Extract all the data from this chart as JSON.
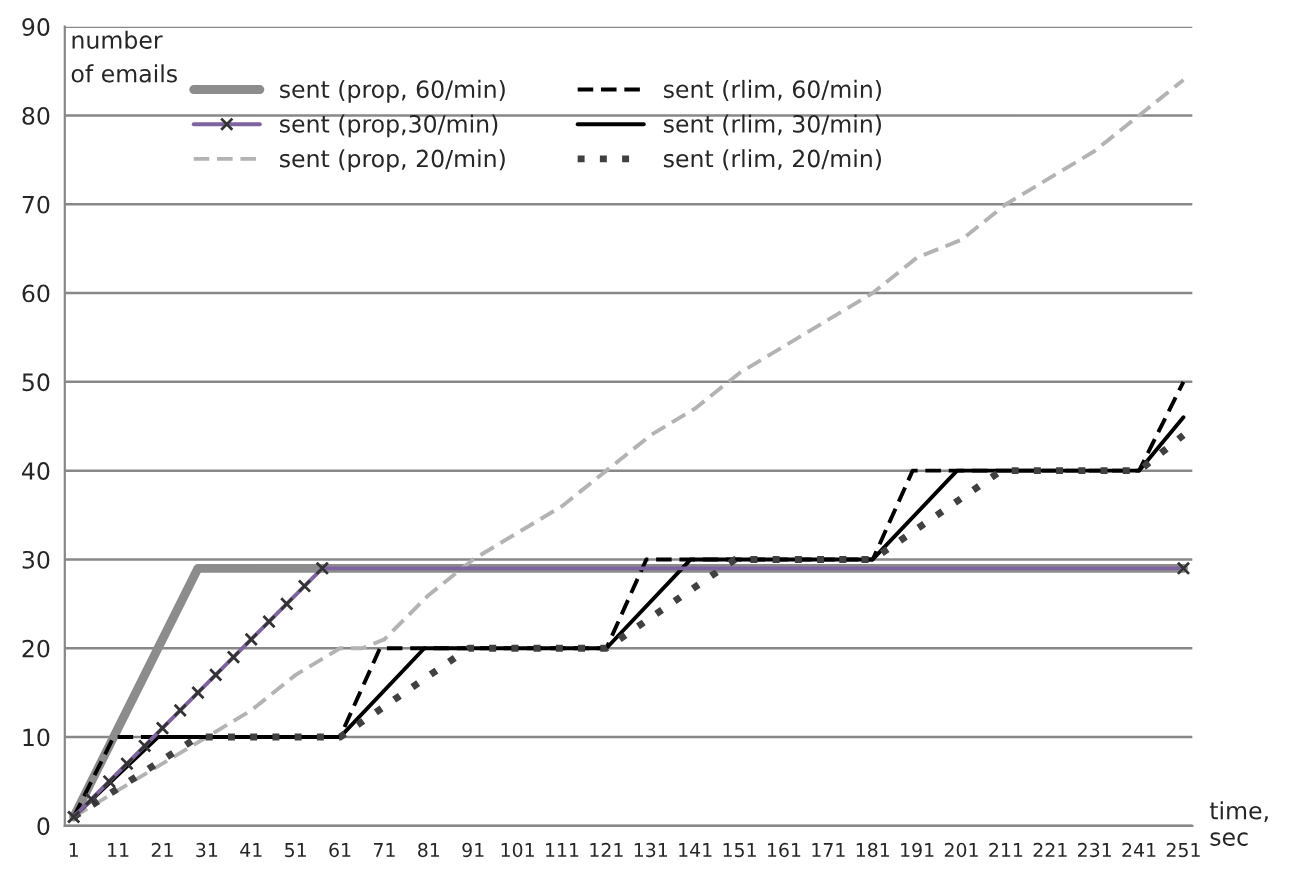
{
  "chart_data": {
    "type": "line",
    "xlabel": "time,\nsec",
    "ylabel": "number\nof emails",
    "xlim": [
      -1,
      253
    ],
    "ylim": [
      0,
      90
    ],
    "xticks": [
      1,
      11,
      21,
      31,
      41,
      51,
      61,
      71,
      81,
      91,
      101,
      111,
      121,
      131,
      141,
      151,
      161,
      171,
      181,
      191,
      201,
      211,
      221,
      231,
      241,
      251
    ],
    "yticks": [
      0,
      10,
      20,
      30,
      40,
      50,
      60,
      70,
      80,
      90
    ],
    "grid": "y",
    "legend": "top",
    "series": [
      {
        "name": "sent (prop, 60/min)",
        "color": "#8c8c8c",
        "line_style": "solid",
        "marker": "none",
        "x": [
          1,
          29,
          251
        ],
        "values": [
          1,
          29,
          29
        ]
      },
      {
        "name": "sent (prop,30/min)",
        "color": "#7e649e",
        "line_style": "solid",
        "marker": "cross",
        "x": [
          1,
          5,
          9,
          13,
          17,
          21,
          25,
          29,
          33,
          37,
          41,
          45,
          49,
          53,
          57,
          251
        ],
        "values": [
          1,
          3,
          5,
          7,
          9,
          11,
          13,
          15,
          17,
          19,
          21,
          23,
          25,
          27,
          29,
          29
        ]
      },
      {
        "name": "sent (prop, 20/min)",
        "color": "#b3b3b3",
        "line_style": "dashed",
        "marker": "none",
        "x": [
          1,
          31,
          41,
          51,
          61,
          66,
          71,
          81,
          91,
          101,
          111,
          121,
          131,
          141,
          151,
          161,
          171,
          181,
          191,
          201,
          211,
          221,
          231,
          241,
          251
        ],
        "values": [
          1,
          10,
          13,
          17,
          20,
          20,
          21,
          26,
          30,
          33,
          36,
          40,
          44,
          47,
          51,
          54,
          57,
          60,
          64,
          66,
          70,
          73,
          76,
          80,
          84
        ]
      },
      {
        "name": "sent (rlim, 60/min)",
        "color": "#000000",
        "line_style": "dashed",
        "marker": "none",
        "x": [
          1,
          10,
          61,
          70,
          121,
          130,
          181,
          190,
          241,
          251
        ],
        "values": [
          1,
          10,
          10,
          20,
          20,
          30,
          30,
          40,
          40,
          50
        ]
      },
      {
        "name": "sent (rlim, 30/min)",
        "color": "#000000",
        "line_style": "solid",
        "marker": "none",
        "x": [
          1,
          20,
          61,
          80,
          121,
          140,
          181,
          200,
          241,
          251
        ],
        "values": [
          1,
          10,
          10,
          20,
          20,
          30,
          30,
          40,
          40,
          46
        ]
      },
      {
        "name": "sent (rlim, 20/min)",
        "color": "#404040",
        "line_style": "dotted",
        "marker": "none",
        "x": [
          1,
          29,
          61,
          90,
          121,
          150,
          181,
          210,
          241,
          251
        ],
        "values": [
          1,
          10,
          10,
          20,
          20,
          30,
          30,
          40,
          40,
          44
        ]
      }
    ]
  }
}
